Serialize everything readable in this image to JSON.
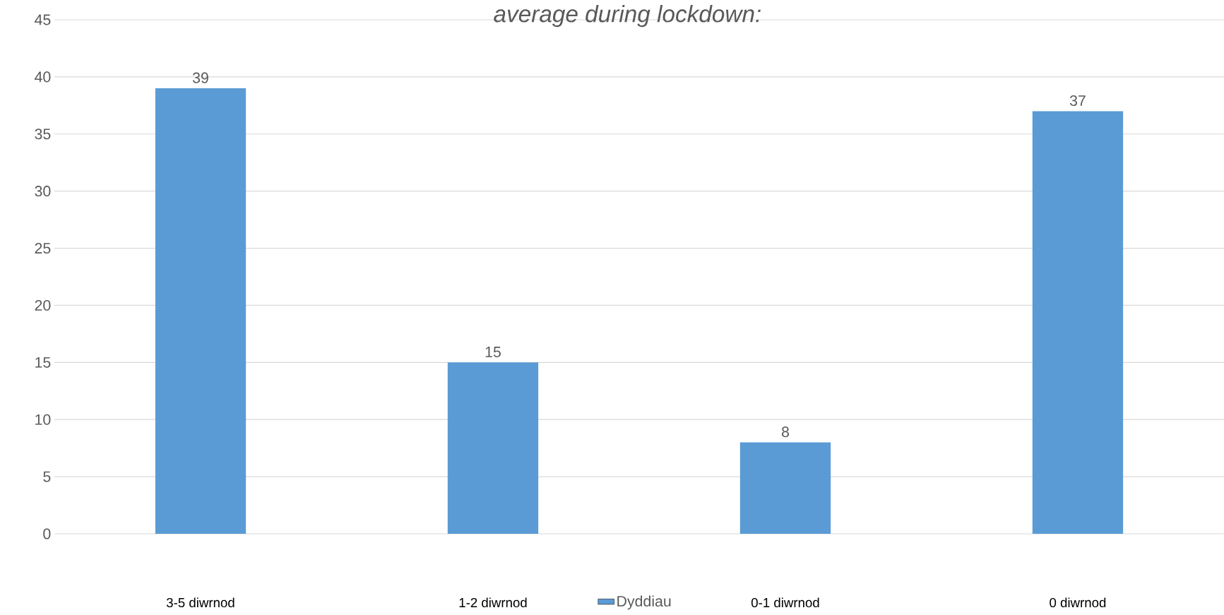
{
  "chart_data": {
    "type": "bar",
    "title": "*average during lockdown:*",
    "categories": [
      "3-5 diwrnod",
      "1-2 diwrnod",
      "0-1 diwrnod",
      "0 diwrnod"
    ],
    "series": [
      {
        "name": "Dyddiau",
        "color": "#5b9bd5",
        "values": [
          39,
          15,
          8,
          37
        ]
      }
    ],
    "ylim": [
      0,
      45
    ],
    "yticks": [
      0,
      5,
      10,
      15,
      20,
      25,
      30,
      35,
      40,
      45
    ],
    "grid": "y",
    "legend": "bottom",
    "data_labels": true
  }
}
